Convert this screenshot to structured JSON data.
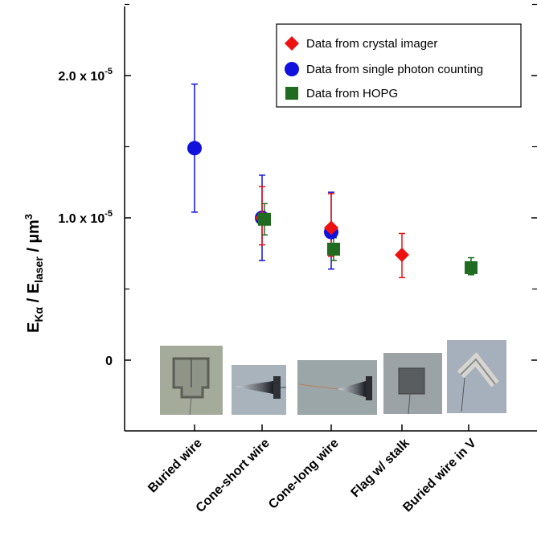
{
  "chart_data": {
    "type": "scatter",
    "categories": [
      "Buried wire",
      "Cone-short wire",
      "Cone-long wire",
      "Flag w/ stalk",
      "Buried wire in V"
    ],
    "ylabel": {
      "main": "E",
      "sub1": "Kα",
      "mid": " / E",
      "sub2": "laser",
      "unit": " / µm",
      "sup": "3"
    },
    "ylim": [
      -3.5e-06,
      2.5e-05
    ],
    "y_ticks": [
      {
        "value": 2e-05,
        "mantissa": "2.0 x 10",
        "exp": "-5"
      },
      {
        "value": 1e-05,
        "mantissa": "1.0 x 10",
        "exp": "-5"
      },
      {
        "value": 0,
        "mantissa": "0",
        "exp": ""
      }
    ],
    "y_minor_ticks": [
      2.5e-05,
      1.5e-05,
      5e-06
    ],
    "grid": false,
    "legend_position": "top-right",
    "series": [
      {
        "name": "Data from crystal imager",
        "marker": "diamond",
        "color": "#ee1111",
        "points": [
          {
            "x": "Cone-short wire",
            "y": 1e-05,
            "err_low": 8.1e-06,
            "err_high": 1.22e-05
          },
          {
            "x": "Cone-long wire",
            "y": 9.3e-06,
            "err_low": 7.3e-06,
            "err_high": 1.17e-05
          },
          {
            "x": "Flag w/ stalk",
            "y": 7.4e-06,
            "err_low": 5.8e-06,
            "err_high": 8.9e-06
          }
        ]
      },
      {
        "name": "Data from single photon counting",
        "marker": "circle",
        "color": "#1111dd",
        "points": [
          {
            "x": "Buried wire",
            "y": 1.49e-05,
            "err_low": 1.04e-05,
            "err_high": 1.94e-05
          },
          {
            "x": "Cone-short wire",
            "y": 1e-05,
            "err_low": 7e-06,
            "err_high": 1.3e-05
          },
          {
            "x": "Cone-long wire",
            "y": 9e-06,
            "err_low": 6.4e-06,
            "err_high": 1.18e-05
          }
        ]
      },
      {
        "name": "Data from HOPG",
        "marker": "square",
        "color": "#1f6b1f",
        "points": [
          {
            "x": "Cone-short wire",
            "y": 9.9e-06,
            "err_low": 8.8e-06,
            "err_high": 1.1e-05
          },
          {
            "x": "Cone-long wire",
            "y": 7.8e-06,
            "err_low": 7e-06,
            "err_high": 8.6e-06
          },
          {
            "x": "Buried wire in V",
            "y": 6.5e-06,
            "err_low": 6e-06,
            "err_high": 7.2e-06
          }
        ]
      }
    ]
  },
  "images": [
    {
      "category": "Buried wire",
      "depicts": "wire-target-photo"
    },
    {
      "category": "Cone-short wire",
      "depicts": "cone-target-photo"
    },
    {
      "category": "Cone-long wire",
      "depicts": "cone-long-wire-photo"
    },
    {
      "category": "Flag w/ stalk",
      "depicts": "flag-target-photo"
    },
    {
      "category": "Buried wire in V",
      "depicts": "v-wire-target-photo"
    }
  ]
}
